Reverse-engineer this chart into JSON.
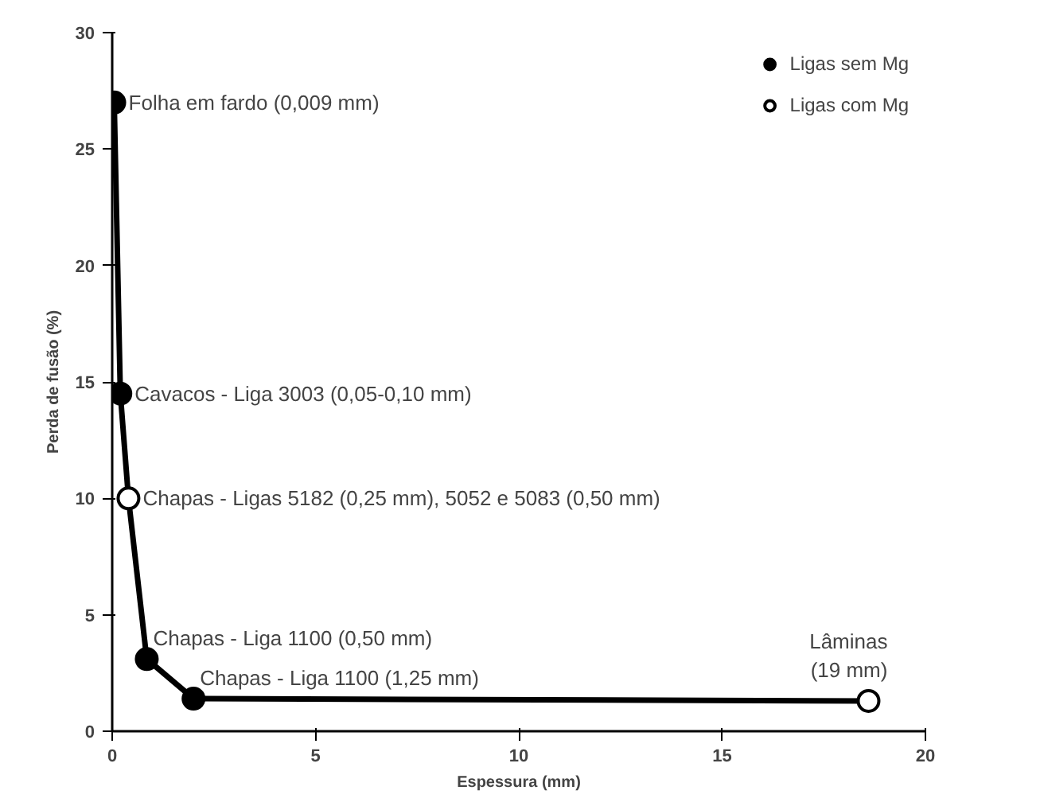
{
  "chart_data": {
    "type": "line",
    "xlabel": "Espessura (mm)",
    "ylabel": "Perda de fusão (%)",
    "xlim": [
      0,
      20
    ],
    "ylim": [
      0,
      30
    ],
    "xticks": [
      0,
      5,
      10,
      15,
      20
    ],
    "yticks": [
      0,
      5,
      10,
      15,
      20,
      25,
      30
    ],
    "grid": false,
    "legend": "top right",
    "line_style": "solid",
    "series": [
      {
        "type": "line",
        "color": "#000000",
        "x": [
          0.05,
          0.2,
          0.4,
          0.85,
          2,
          18.6
        ],
        "values": [
          27,
          14.5,
          10,
          3.1,
          1.4,
          1.3
        ]
      },
      {
        "type": "scatter",
        "name": "Ligas sem Mg",
        "color": "#000000",
        "x": [
          0.05,
          0.2,
          0.85,
          2
        ],
        "values": [
          27,
          14.5,
          3.1,
          1.4
        ],
        "marker": "circle"
      },
      {
        "type": "scatter",
        "name": "Ligas com Mg",
        "color": "#ffffff",
        "x": [
          0.4,
          18.6
        ],
        "values": [
          10,
          1.3
        ],
        "marker": "circle"
      }
    ],
    "annotations": [
      {
        "text": "Folha em fardo (0,009 mm)",
        "x": 0.05,
        "y": 27
      },
      {
        "text": "Cavacos - Liga 3003 (0,05-0,10 mm)",
        "x": 0.2,
        "y": 14.5
      },
      {
        "text": "Chapas - Ligas 5182 (0,25 mm), 5052 e 5083 (0,50 mm)",
        "x": 0.4,
        "y": 10
      },
      {
        "text": "Chapas - Liga 1100 (0,50 mm)",
        "x": 0.85,
        "y": 3.1
      },
      {
        "text": "Chapas - Liga 1100 (1,25 mm)",
        "x": 2,
        "y": 1.4
      },
      {
        "text": "Lâminas\n(19 mm)",
        "x": 18.6,
        "y": 1.3
      }
    ]
  }
}
